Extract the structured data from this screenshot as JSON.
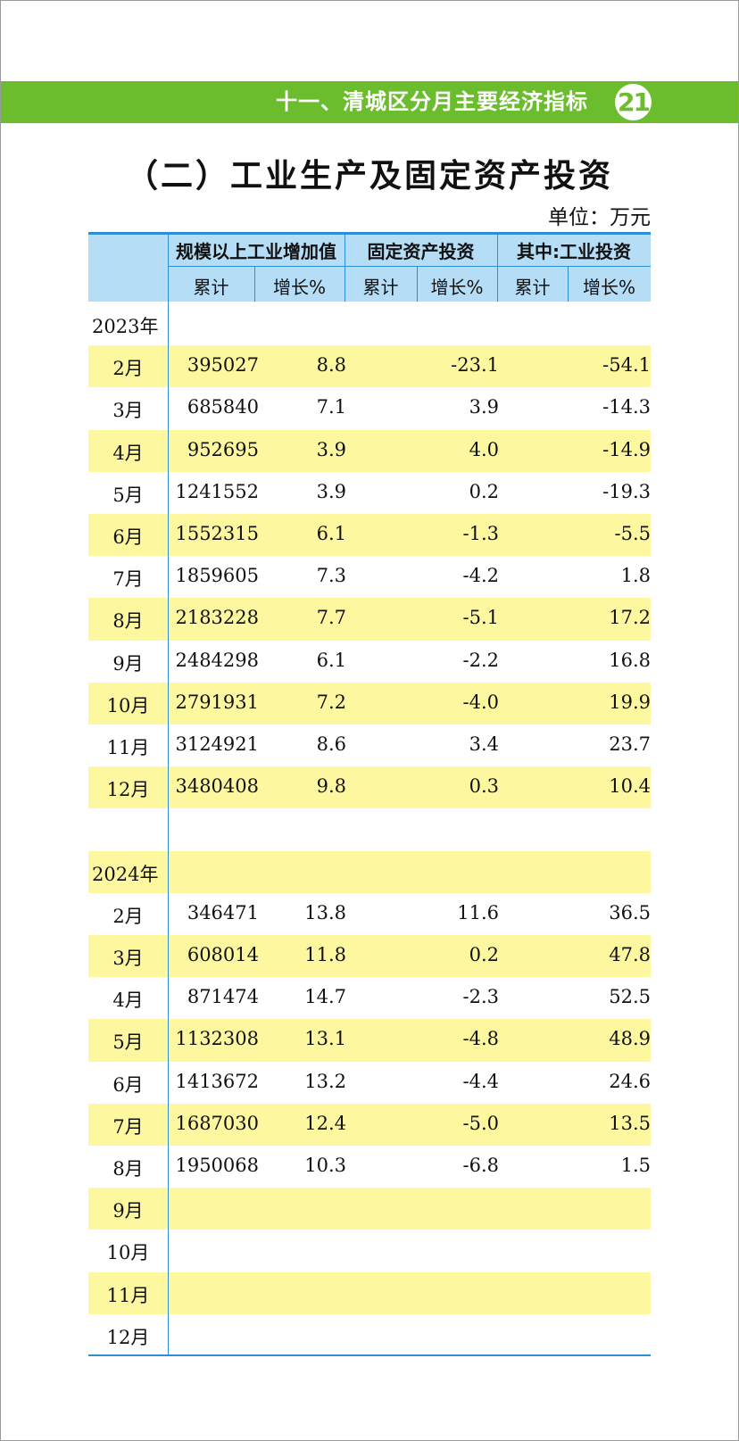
{
  "header": {
    "section_title": "十一、清城区分月主要经济指标",
    "page_number": "21"
  },
  "title": "（二）工业生产及固定资产投资",
  "unit": "单位：万元",
  "table": {
    "column_groups": [
      "规模以上工业增加值",
      "固定资产投资",
      "其中:工业投资"
    ],
    "subcolumns": [
      "累计",
      "增长%",
      "累计",
      "增长%",
      "累计",
      "增长%"
    ],
    "sections": [
      {
        "year": "2023年",
        "rows": [
          {
            "month": "2月",
            "cells": [
              "395027",
              "8.8",
              "-23.1",
              "-54.1"
            ]
          },
          {
            "month": "3月",
            "cells": [
              "685840",
              "7.1",
              "3.9",
              "-14.3"
            ]
          },
          {
            "month": "4月",
            "cells": [
              "952695",
              "3.9",
              "4.0",
              "-14.9"
            ]
          },
          {
            "month": "5月",
            "cells": [
              "1241552",
              "3.9",
              "0.2",
              "-19.3"
            ]
          },
          {
            "month": "6月",
            "cells": [
              "1552315",
              "6.1",
              "-1.3",
              "-5.5"
            ]
          },
          {
            "month": "7月",
            "cells": [
              "1859605",
              "7.3",
              "-4.2",
              "1.8"
            ]
          },
          {
            "month": "8月",
            "cells": [
              "2183228",
              "7.7",
              "-5.1",
              "17.2"
            ]
          },
          {
            "month": "9月",
            "cells": [
              "2484298",
              "6.1",
              "-2.2",
              "16.8"
            ]
          },
          {
            "month": "10月",
            "cells": [
              "2791931",
              "7.2",
              "-4.0",
              "19.9"
            ]
          },
          {
            "month": "11月",
            "cells": [
              "3124921",
              "8.6",
              "3.4",
              "23.7"
            ]
          },
          {
            "month": "12月",
            "cells": [
              "3480408",
              "9.8",
              "0.3",
              "10.4"
            ]
          }
        ]
      },
      {
        "year": "2024年",
        "rows": [
          {
            "month": "2月",
            "cells": [
              "346471",
              "13.8",
              "11.6",
              "36.5"
            ]
          },
          {
            "month": "3月",
            "cells": [
              "608014",
              "11.8",
              "0.2",
              "47.8"
            ]
          },
          {
            "month": "4月",
            "cells": [
              "871474",
              "14.7",
              "-2.3",
              "52.5"
            ]
          },
          {
            "month": "5月",
            "cells": [
              "1132308",
              "13.1",
              "-4.8",
              "48.9"
            ]
          },
          {
            "month": "6月",
            "cells": [
              "1413672",
              "13.2",
              "-4.4",
              "24.6"
            ]
          },
          {
            "month": "7月",
            "cells": [
              "1687030",
              "12.4",
              "-5.0",
              "13.5"
            ]
          },
          {
            "month": "8月",
            "cells": [
              "1950068",
              "10.3",
              "-6.8",
              "1.5"
            ]
          },
          {
            "month": "9月",
            "cells": []
          },
          {
            "month": "10月",
            "cells": []
          },
          {
            "month": "11月",
            "cells": []
          },
          {
            "month": "12月",
            "cells": []
          }
        ]
      }
    ]
  }
}
